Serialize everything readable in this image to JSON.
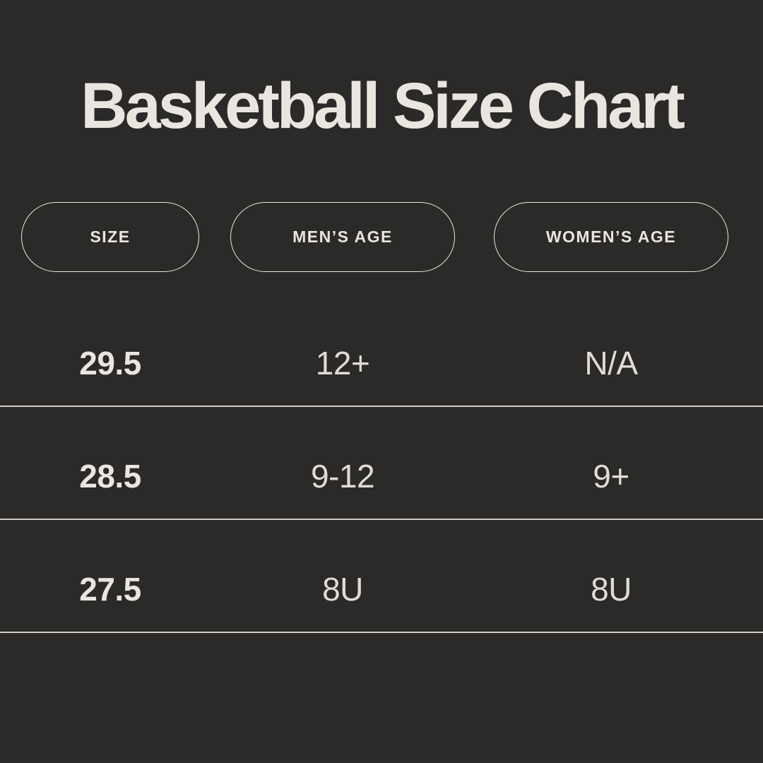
{
  "title": "Basketball Size Chart",
  "colors": {
    "background": "#2b2a28",
    "text": "#e9e6e0",
    "divider": "#cfccc6",
    "pill_border": "#e9e6e0"
  },
  "table": {
    "headers": [
      "SIZE",
      "MEN’S AGE",
      "WOMEN’S AGE"
    ],
    "rows": [
      [
        "29.5",
        "12+",
        "N/A"
      ],
      [
        "28.5",
        "9-12",
        "9+"
      ],
      [
        "27.5",
        "8U",
        "8U"
      ]
    ]
  },
  "chart_data": {
    "type": "table",
    "title": "Basketball Size Chart",
    "columns": [
      "SIZE",
      "MEN’S AGE",
      "WOMEN’S AGE"
    ],
    "rows": [
      {
        "size": "29.5",
        "mens_age": "12+",
        "womens_age": "N/A"
      },
      {
        "size": "28.5",
        "mens_age": "9-12",
        "womens_age": "9+"
      },
      {
        "size": "27.5",
        "mens_age": "8U",
        "womens_age": "8U"
      }
    ],
    "layout": {
      "header_style": "outlined-pills",
      "row_dividers": true,
      "theme": "dark"
    }
  }
}
